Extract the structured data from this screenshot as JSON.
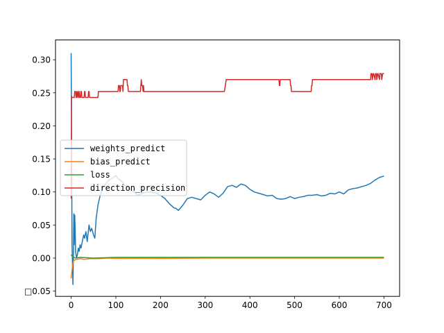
{
  "chart_data": {
    "type": "line",
    "title": "",
    "xlabel": "",
    "ylabel": "",
    "xlim": [
      -35,
      735
    ],
    "ylim": [
      -0.058,
      0.33
    ],
    "xticks": [
      0,
      100,
      200,
      300,
      400,
      500,
      600,
      700
    ],
    "xtick_labels": [
      "0",
      "100",
      "200",
      "300",
      "400",
      "500",
      "600",
      "700"
    ],
    "yticks": [
      -0.05,
      0.0,
      0.05,
      0.1,
      0.15,
      0.2,
      0.25,
      0.3
    ],
    "ytick_labels": [
      "□0.05",
      "0.00",
      "0.05",
      "0.10",
      "0.15",
      "0.20",
      "0.25",
      "0.30"
    ],
    "grid": false,
    "legend_position": "center-left",
    "series": [
      {
        "name": "weights_predict",
        "color": "#1f77b4",
        "x": [
          0,
          1,
          2,
          3,
          4,
          5,
          6,
          7,
          8,
          9,
          10,
          12,
          14,
          16,
          18,
          20,
          22,
          25,
          28,
          30,
          33,
          36,
          40,
          43,
          46,
          50,
          53,
          56,
          60,
          65,
          70,
          75,
          80,
          85,
          90,
          95,
          100,
          105,
          110,
          115,
          120,
          125,
          130,
          140,
          150,
          160,
          170,
          180,
          190,
          200,
          210,
          220,
          230,
          235,
          240,
          250,
          260,
          270,
          280,
          290,
          300,
          310,
          320,
          330,
          340,
          350,
          360,
          370,
          380,
          390,
          400,
          410,
          420,
          430,
          440,
          450,
          460,
          470,
          480,
          490,
          500,
          510,
          520,
          530,
          540,
          550,
          560,
          570,
          580,
          590,
          600,
          610,
          620,
          630,
          640,
          650,
          660,
          670,
          680,
          690,
          700
        ],
        "y": [
          0.31,
          0.18,
          0.02,
          -0.01,
          -0.04,
          0.0,
          0.067,
          0.02,
          0.065,
          0.045,
          0.01,
          0.0,
          0.005,
          0.015,
          0.01,
          0.02,
          0.015,
          0.025,
          0.035,
          0.03,
          0.04,
          0.025,
          0.05,
          0.04,
          0.045,
          0.035,
          0.03,
          0.06,
          0.08,
          0.095,
          0.105,
          0.11,
          0.115,
          0.118,
          0.12,
          0.122,
          0.125,
          0.12,
          0.118,
          0.115,
          0.11,
          0.108,
          0.105,
          0.1,
          0.095,
          0.098,
          0.1,
          0.1,
          0.098,
          0.095,
          0.09,
          0.082,
          0.076,
          0.075,
          0.072,
          0.08,
          0.09,
          0.092,
          0.09,
          0.088,
          0.095,
          0.1,
          0.097,
          0.092,
          0.098,
          0.108,
          0.11,
          0.107,
          0.112,
          0.11,
          0.104,
          0.1,
          0.098,
          0.096,
          0.094,
          0.095,
          0.09,
          0.089,
          0.09,
          0.093,
          0.09,
          0.092,
          0.093,
          0.095,
          0.095,
          0.096,
          0.094,
          0.095,
          0.098,
          0.097,
          0.1,
          0.097,
          0.103,
          0.105,
          0.106,
          0.108,
          0.11,
          0.113,
          0.118,
          0.122,
          0.124
        ]
      },
      {
        "name": "bias_predict",
        "color": "#ff7f0e",
        "x": [
          0,
          2,
          4,
          6,
          8,
          12,
          20,
          30,
          40,
          60,
          80,
          100,
          150,
          200,
          300,
          400,
          500,
          600,
          700
        ],
        "y": [
          -0.031,
          -0.018,
          -0.008,
          -0.004,
          -0.003,
          -0.002,
          -0.001,
          -0.002,
          -0.001,
          -0.001,
          0.0,
          -0.0005,
          -0.0003,
          -0.0005,
          0.0,
          0.0,
          0.0,
          0.0,
          0.0
        ]
      },
      {
        "name": "loss",
        "color": "#2ca02c",
        "x": [
          0,
          3,
          6,
          10,
          20,
          50,
          100,
          200,
          300,
          400,
          500,
          600,
          700
        ],
        "y": [
          0.005,
          0.002,
          0.001,
          0.0,
          0.001,
          0.0,
          0.001,
          0.001,
          0.001,
          0.001,
          0.001,
          0.001,
          0.001
        ]
      },
      {
        "name": "direction_precision",
        "color": "#d62728",
        "x": [
          0,
          1,
          2,
          3,
          5,
          7,
          8,
          10,
          11,
          12,
          13,
          14,
          15,
          16,
          17,
          18,
          19,
          20,
          21,
          22,
          23,
          24,
          25,
          26,
          28,
          29,
          30,
          31,
          32,
          38,
          39,
          40,
          41,
          42,
          60,
          61,
          105,
          106,
          108,
          109,
          110,
          111,
          115,
          116,
          117,
          118,
          125,
          126,
          127,
          128,
          155,
          156,
          157,
          158,
          160,
          161,
          162,
          163,
          165,
          166,
          343,
          345,
          347,
          348,
          465,
          466,
          467,
          468,
          490,
          491,
          492,
          493,
          495,
          496,
          537,
          538,
          539,
          540,
          541,
          670,
          671,
          673,
          674,
          676,
          677,
          680,
          681,
          683,
          684,
          686,
          687,
          690,
          691,
          694,
          695,
          697,
          698,
          700
        ],
        "y": [
          0.09,
          0.245,
          0.243,
          0.243,
          0.243,
          0.243,
          0.252,
          0.252,
          0.243,
          0.243,
          0.252,
          0.252,
          0.243,
          0.243,
          0.252,
          0.252,
          0.243,
          0.243,
          0.243,
          0.252,
          0.252,
          0.243,
          0.243,
          0.243,
          0.243,
          0.243,
          0.252,
          0.252,
          0.243,
          0.243,
          0.252,
          0.252,
          0.243,
          0.243,
          0.243,
          0.252,
          0.252,
          0.261,
          0.261,
          0.252,
          0.252,
          0.261,
          0.261,
          0.252,
          0.27,
          0.27,
          0.27,
          0.261,
          0.261,
          0.252,
          0.252,
          0.261,
          0.27,
          0.261,
          0.261,
          0.252,
          0.261,
          0.252,
          0.252,
          0.252,
          0.252,
          0.261,
          0.27,
          0.27,
          0.27,
          0.261,
          0.261,
          0.27,
          0.27,
          0.261,
          0.261,
          0.252,
          0.252,
          0.252,
          0.252,
          0.261,
          0.261,
          0.27,
          0.27,
          0.27,
          0.279,
          0.279,
          0.27,
          0.279,
          0.279,
          0.27,
          0.279,
          0.279,
          0.27,
          0.279,
          0.279,
          0.27,
          0.279,
          0.279,
          0.27,
          0.279,
          0.279,
          0.279
        ]
      }
    ]
  }
}
